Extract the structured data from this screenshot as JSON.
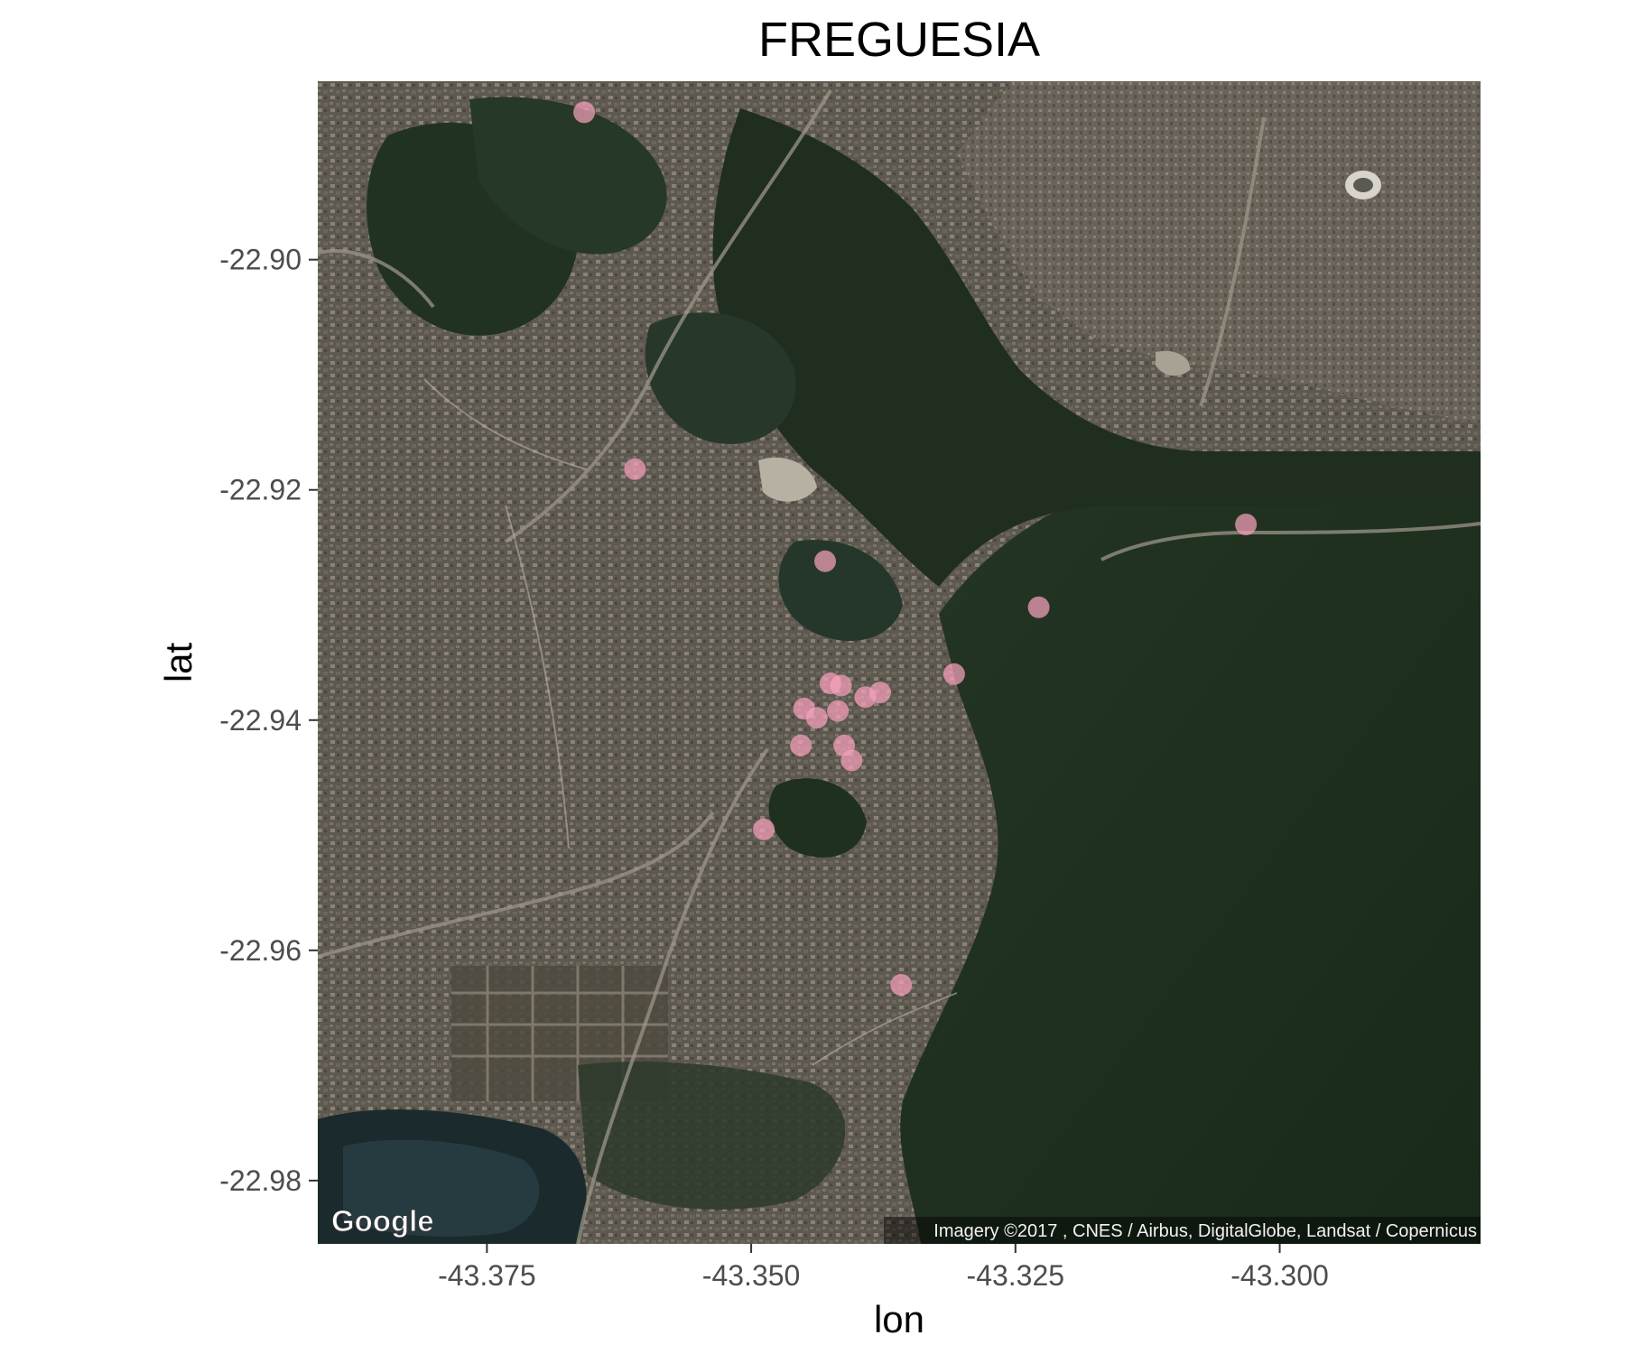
{
  "chart_data": {
    "type": "scatter",
    "title": "FREGUESIA",
    "xlabel": "lon",
    "ylabel": "lat",
    "xlim": [
      -43.391,
      -43.281
    ],
    "ylim": [
      -22.9855,
      -22.8845
    ],
    "x_ticks": [
      -43.375,
      -43.35,
      -43.325,
      -43.3
    ],
    "x_tick_labels": [
      "-43.375",
      "-43.350",
      "-43.325",
      "-43.300"
    ],
    "y_ticks": [
      -22.9,
      -22.92,
      -22.94,
      -22.96,
      -22.98
    ],
    "y_tick_labels": [
      "-22.90",
      "-22.92",
      "-22.94",
      "-22.96",
      "-22.98"
    ],
    "grid": false,
    "basemap": "satellite",
    "point_color": "#f7a1bd",
    "point_opacity": 0.72,
    "points": [
      {
        "x": -43.3658,
        "y": -22.8872
      },
      {
        "x": -43.361,
        "y": -22.9182
      },
      {
        "x": -43.343,
        "y": -22.9262
      },
      {
        "x": -43.3228,
        "y": -22.9302
      },
      {
        "x": -43.3032,
        "y": -22.923
      },
      {
        "x": -43.3308,
        "y": -22.936
      },
      {
        "x": -43.3415,
        "y": -22.937
      },
      {
        "x": -43.3425,
        "y": -22.9368
      },
      {
        "x": -43.3378,
        "y": -22.9376
      },
      {
        "x": -43.3392,
        "y": -22.938
      },
      {
        "x": -43.345,
        "y": -22.939
      },
      {
        "x": -43.3438,
        "y": -22.9398
      },
      {
        "x": -43.3418,
        "y": -22.9392
      },
      {
        "x": -43.3453,
        "y": -22.9422
      },
      {
        "x": -43.3412,
        "y": -22.9422
      },
      {
        "x": -43.3405,
        "y": -22.9435
      },
      {
        "x": -43.3488,
        "y": -22.9495
      },
      {
        "x": -43.3358,
        "y": -22.963
      }
    ]
  },
  "map": {
    "logo": "Google",
    "attribution": "Imagery ©2017 , CNES / Airbus, DigitalGlobe, Landsat / Copernicus"
  }
}
